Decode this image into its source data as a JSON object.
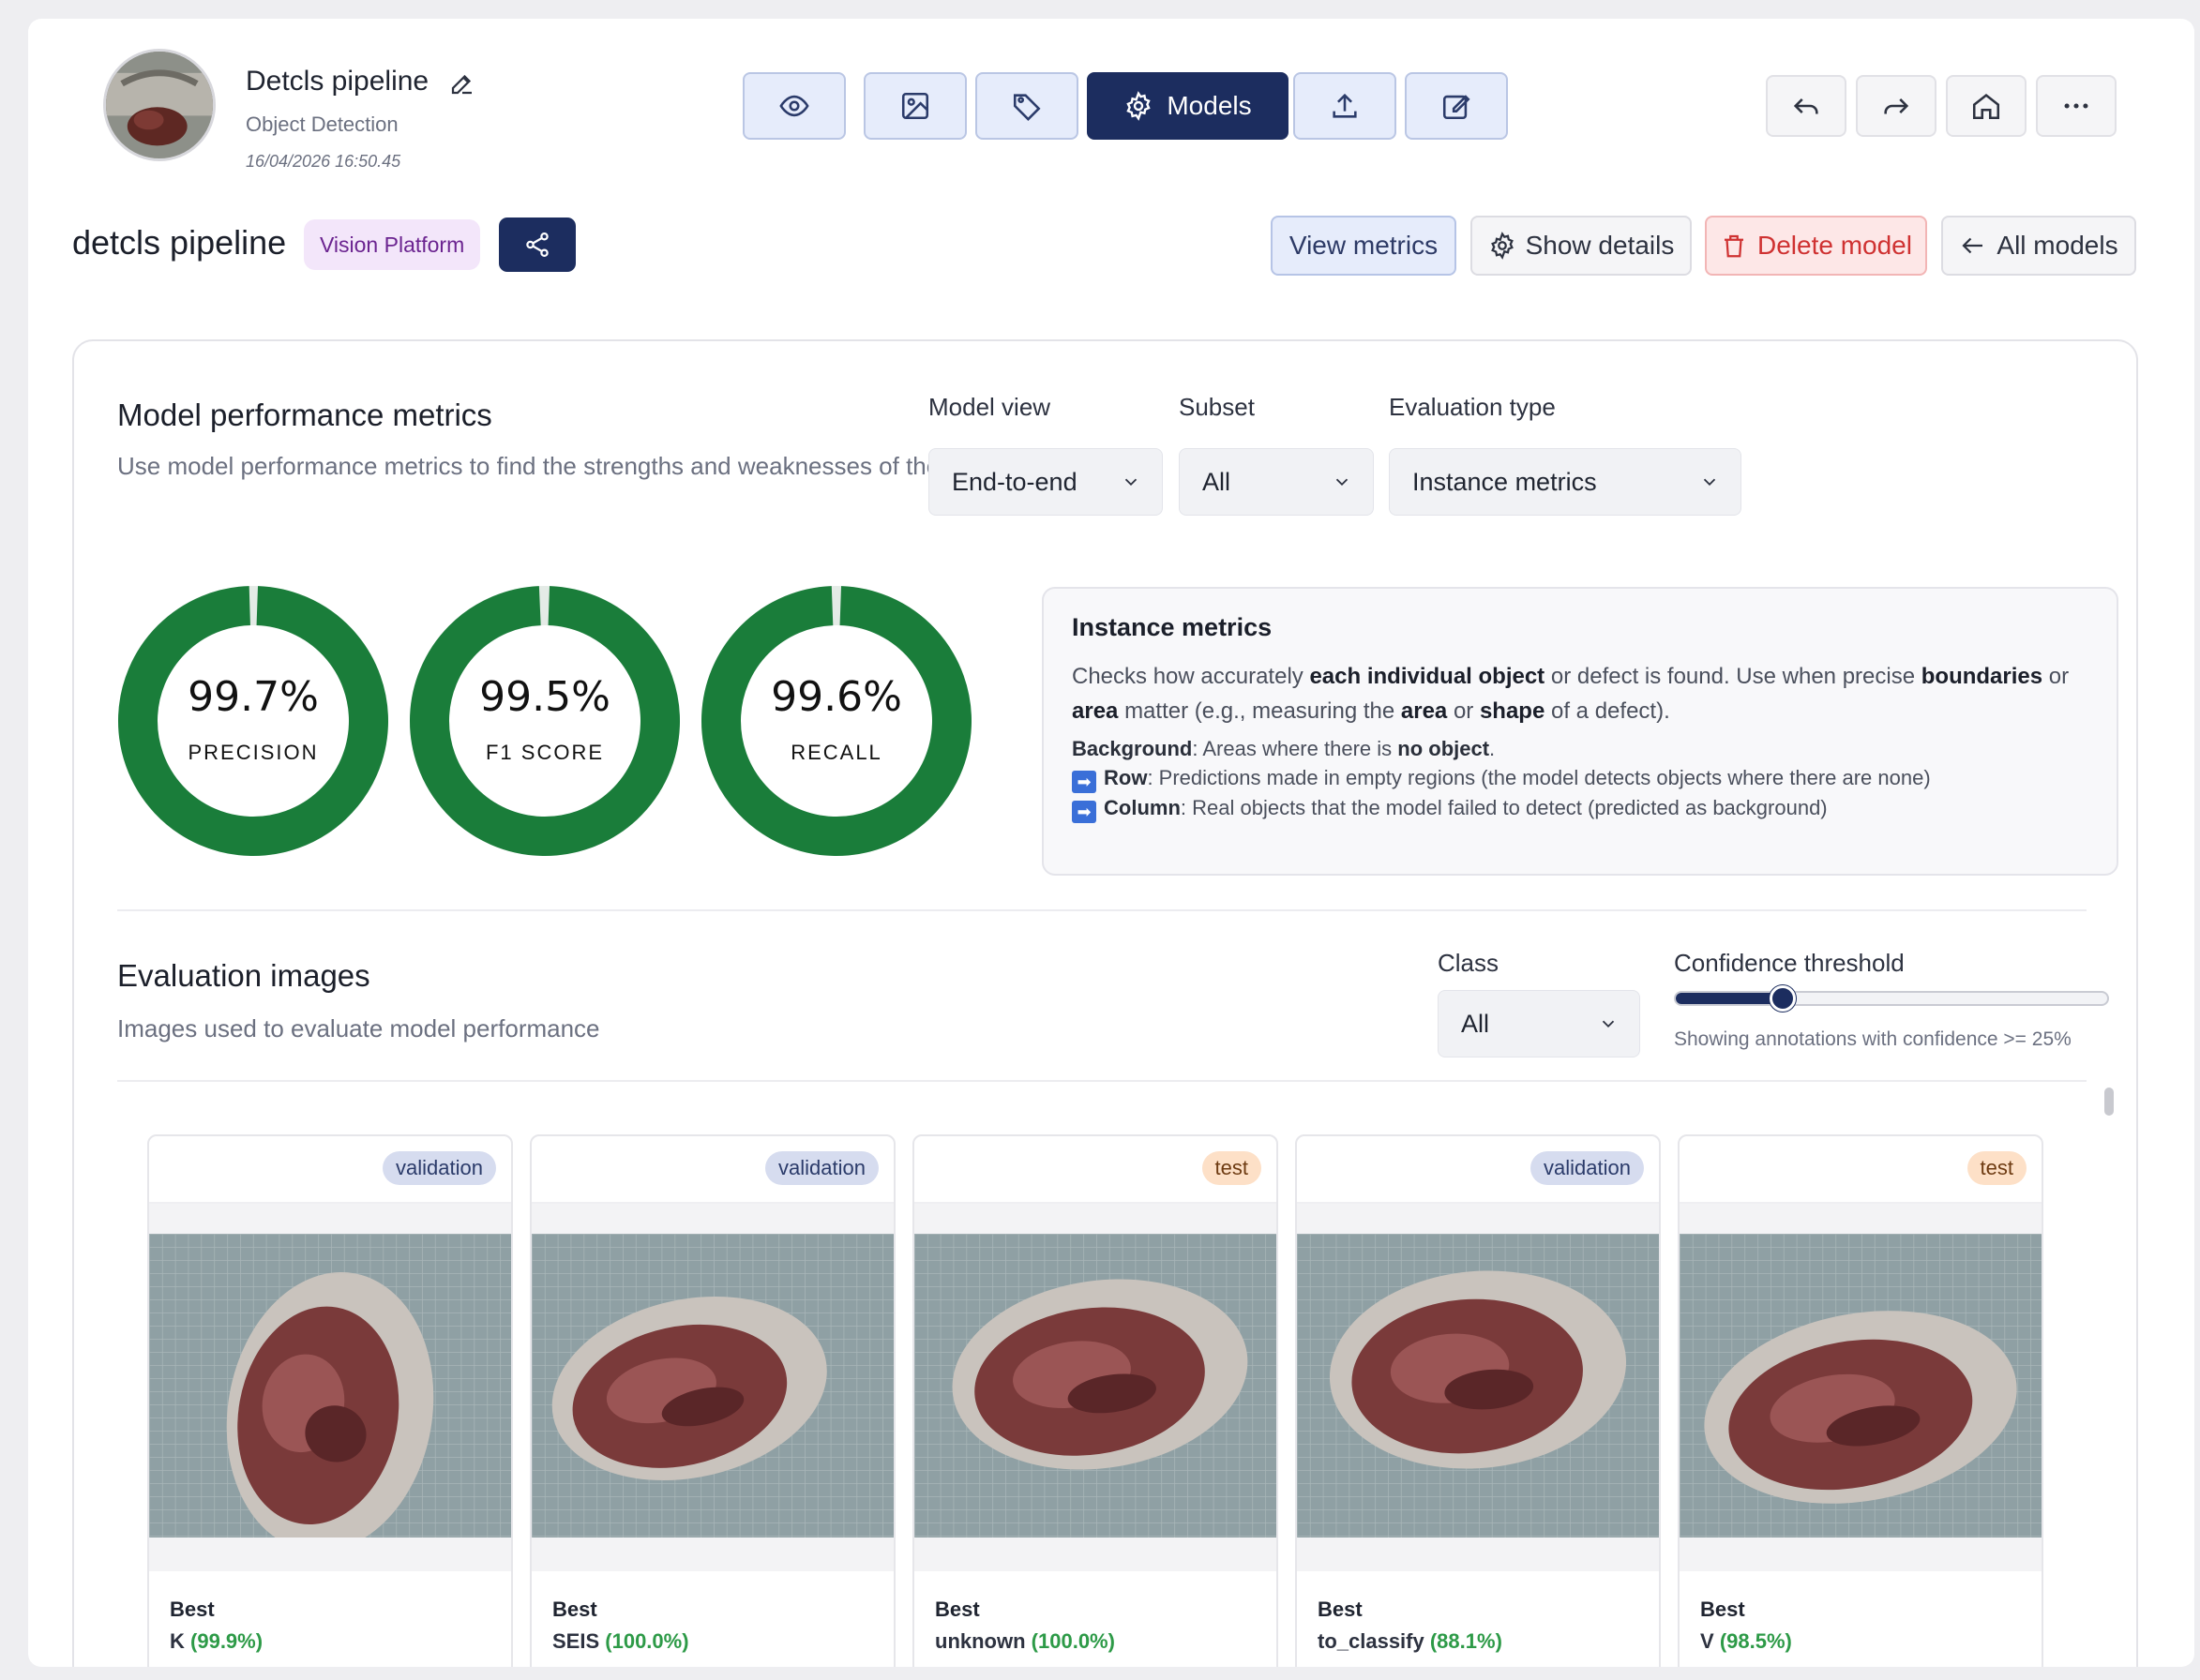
{
  "project": {
    "title": "Detcls pipeline",
    "type": "Object Detection",
    "date": "16/04/2026 16:50.45"
  },
  "toolbar": {
    "active_label": "Models",
    "icons": [
      "eye-icon",
      "image-icon",
      "tag-icon",
      "gear-icon",
      "upload-icon",
      "edit-icon"
    ]
  },
  "nav": {
    "icons": [
      "undo-icon",
      "redo-icon",
      "home-icon",
      "more-icon"
    ]
  },
  "model": {
    "name": "detcls pipeline",
    "badge": "Vision Platform",
    "actions": {
      "view_metrics": "View metrics",
      "show_details": "Show details",
      "delete_model": "Delete model",
      "all_models": "All models"
    }
  },
  "performance": {
    "title": "Model performance metrics",
    "subtitle": "Use model performance metrics to find the strengths and weaknesses of the model",
    "model_view": {
      "label": "Model view",
      "value": "End-to-end"
    },
    "subset": {
      "label": "Subset",
      "value": "All"
    },
    "evaluation_type": {
      "label": "Evaluation type",
      "value": "Instance metrics"
    },
    "metrics": [
      {
        "value": "99.7%",
        "label": "PRECISION",
        "fraction": 0.997
      },
      {
        "value": "99.5%",
        "label": "F1 SCORE",
        "fraction": 0.995
      },
      {
        "value": "99.6%",
        "label": "RECALL",
        "fraction": 0.996
      }
    ],
    "info": {
      "title": "Instance metrics",
      "p1": "Checks how accurately",
      "p1_b1": "each individual object",
      "p1_mid": "or defect is found. Use when precise",
      "p1_b2": "boundaries",
      "p1_or": "or",
      "p1_b3": "area",
      "p1_end": "matter (e.g., measuring the",
      "p1_b4": "area",
      "p1_or2": "or",
      "p1_b5": "shape",
      "p1_tail": "of a defect).",
      "bg_label": "Background",
      "bg_text": ": Areas where there is",
      "bg_b": "no object",
      "bg_dot": ".",
      "row_label": "Row",
      "row_text": ": Predictions made in empty regions (the model detects objects where there are none)",
      "col_label": "Column",
      "col_text": ": Real objects that the model failed to detect (predicted as background)"
    },
    "colors": {
      "ring": "#1a7d3a"
    }
  },
  "evaluation": {
    "title": "Evaluation images",
    "subtitle": "Images used to evaluate model performance",
    "class": {
      "label": "Class",
      "value": "All"
    },
    "confidence": {
      "label": "Confidence threshold",
      "note": "Showing annotations with confidence >= 25%",
      "value": 0.25
    },
    "images": [
      {
        "split": "validation",
        "best": "Best",
        "pred": "K",
        "conf": "(99.9%)"
      },
      {
        "split": "validation",
        "best": "Best",
        "pred": "SEIS",
        "conf": "(100.0%)"
      },
      {
        "split": "test",
        "best": "Best",
        "pred": "unknown",
        "conf": "(100.0%)"
      },
      {
        "split": "validation",
        "best": "Best",
        "pred": "to_classify",
        "conf": "(88.1%)"
      },
      {
        "split": "test",
        "best": "Best",
        "pred": "V",
        "conf": "(98.5%)"
      }
    ]
  }
}
